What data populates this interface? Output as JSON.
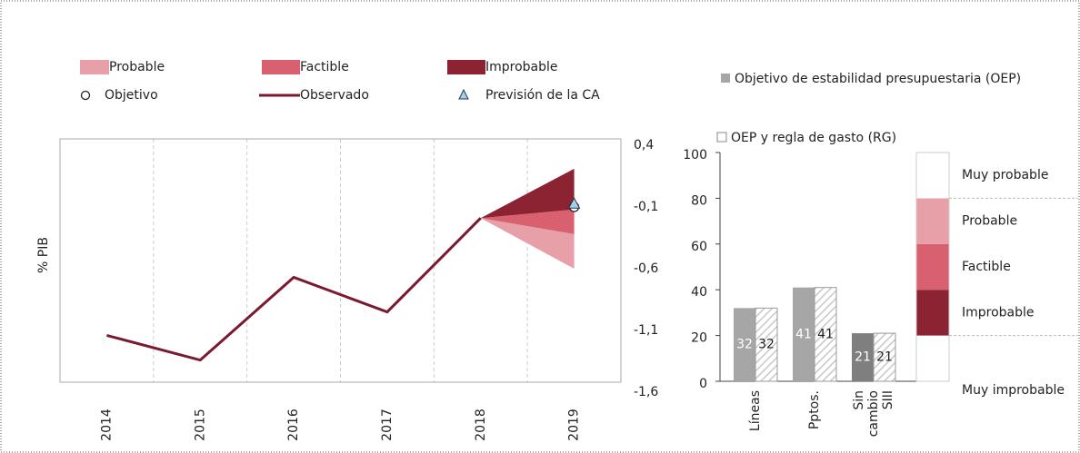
{
  "chart_data": [
    {
      "type": "fan-line",
      "ylabel": "% PIB",
      "categories": [
        "2014",
        "2015",
        "2016",
        "2017",
        "2018",
        "2019"
      ],
      "ylim": [
        -1.6,
        0.4
      ],
      "yticks": [
        {
          "value": 0.4,
          "label": "0,4"
        },
        {
          "value": -0.1,
          "label": "-0,1"
        },
        {
          "value": -0.6,
          "label": "-0,6"
        },
        {
          "value": -1.1,
          "label": "-1,1"
        },
        {
          "value": -1.6,
          "label": "-1,6"
        }
      ],
      "series": [
        {
          "name": "Observado",
          "color": "#7a1a2e",
          "values": [
            -1.14,
            -1.34,
            -0.67,
            -0.95,
            -0.19,
            null
          ]
        }
      ],
      "fan": [
        {
          "name": "Probable",
          "color": "#e8a0a8",
          "low": -0.6,
          "high": -0.32
        },
        {
          "name": "Factible",
          "color": "#d9606f",
          "low": -0.32,
          "high": -0.12
        },
        {
          "name": "Improbable",
          "color": "#8b2333",
          "low": -0.12,
          "high": 0.21
        }
      ],
      "points": [
        {
          "name": "Objetivo",
          "values": [
            null,
            null,
            null,
            null,
            null,
            -0.1
          ]
        },
        {
          "name": "Previsión de la CA",
          "color": "#9dd3e8",
          "values": [
            null,
            null,
            null,
            null,
            null,
            -0.08
          ]
        }
      ]
    },
    {
      "type": "bar",
      "categories": [
        "Líneas",
        "Pptos.",
        "Sin cambio SIII"
      ],
      "ylim": [
        0,
        100
      ],
      "yticks": [
        0,
        20,
        40,
        60,
        80,
        100
      ],
      "series": [
        {
          "name": "Objetivo  de estabilidad presupuestaria (OEP)",
          "colors": [
            "#a6a6a6",
            "#a6a6a6",
            "#7f7f7f"
          ],
          "values": [
            32,
            41,
            21
          ]
        },
        {
          "name": "OEP y regla de gasto (RG)",
          "color": "#d0d0d0",
          "values": [
            32,
            41,
            21
          ]
        }
      ],
      "scale": [
        {
          "name": "Muy improbable",
          "value": 20,
          "color": "#ffffff"
        },
        {
          "name": "Improbable",
          "value": 20,
          "color": "#8b2333"
        },
        {
          "name": "Factible",
          "value": 20,
          "color": "#d9606f"
        },
        {
          "name": "Probable",
          "value": 20,
          "color": "#e8a0a8"
        },
        {
          "name": "Muy probable",
          "value": 20,
          "color": "#ffffff"
        }
      ]
    }
  ]
}
